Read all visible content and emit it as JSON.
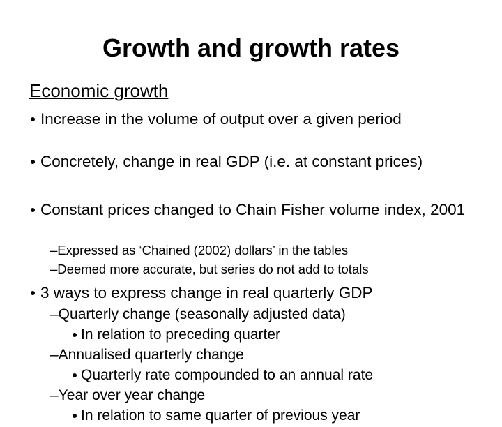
{
  "slide": {
    "title": "Growth and growth rates",
    "heading": "Economic growth",
    "items": [
      {
        "level": 1,
        "text": "Increase in the volume of output over a given period"
      },
      {
        "level": 1,
        "text": "Concretely, change in real GDP (i.e. at constant prices)"
      },
      {
        "level": 1,
        "text": "Constant prices changed to Chain Fisher volume index, 2001"
      },
      {
        "level": 2,
        "text": "–Expressed as ‘Chained (2002) dollars’ in the tables"
      },
      {
        "level": 2,
        "text": "–Deemed more accurate, but series do not add to totals"
      },
      {
        "level": 1,
        "text": "3 ways to express change in real quarterly GDP"
      },
      {
        "level": 3,
        "text": "–Quarterly change (seasonally adjusted data)"
      },
      {
        "level": 4,
        "text": "In relation to preceding quarter"
      },
      {
        "level": 3,
        "text": "–Annualised quarterly change"
      },
      {
        "level": 4,
        "text": "Quarterly rate compounded to an annual rate"
      },
      {
        "level": 3,
        "text": "–Year over year change"
      },
      {
        "level": 4,
        "text": "In relation to same quarter of previous year"
      }
    ]
  }
}
